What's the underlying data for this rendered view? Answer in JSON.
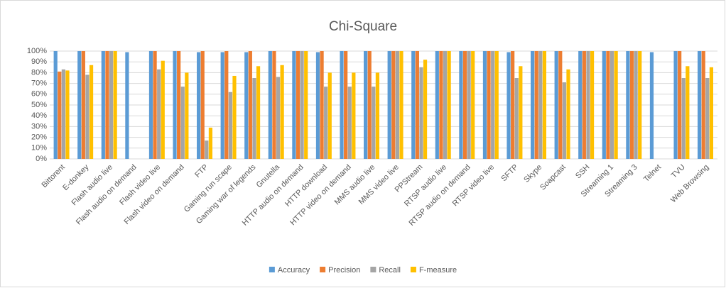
{
  "chart_data": {
    "type": "bar",
    "title": "Chi-Square",
    "categories": [
      "Bittorent",
      "E-donkey",
      "Flash audio live",
      "Flash audio on demand",
      "Flash video live",
      "Flash video on demand",
      "FTP",
      "Gaming run scape",
      "Gaming war of legends",
      "Gnutella",
      "HTTP audio on demand",
      "HTTP download",
      "HTTP video on demand",
      "MMS audio live",
      "MMS video live",
      "PPStream",
      "RTSP audio live",
      "RTSP audio on demand",
      "RTSP video live",
      "SFTP",
      "Skype",
      "Soapcast",
      "SSH",
      "Streaming 1",
      "Streaming 3",
      "Telnet",
      "TVU",
      "Web Browsing"
    ],
    "series": [
      {
        "name": "Accuracy",
        "color": "#5b9bd5",
        "values": [
          100,
          100,
          100,
          99,
          100,
          100,
          99,
          99,
          99,
          100,
          100,
          99,
          100,
          100,
          100,
          100,
          100,
          100,
          100,
          99,
          100,
          100,
          100,
          100,
          100,
          99,
          100,
          100
        ]
      },
      {
        "name": "Precision",
        "color": "#ed7d31",
        "values": [
          81,
          100,
          100,
          0,
          100,
          100,
          100,
          100,
          100,
          100,
          100,
          100,
          100,
          100,
          100,
          100,
          100,
          100,
          100,
          100,
          100,
          100,
          100,
          100,
          100,
          0,
          100,
          100
        ]
      },
      {
        "name": "Recall",
        "color": "#a5a5a5",
        "values": [
          83,
          78,
          100,
          0,
          83,
          67,
          17,
          62,
          75,
          76,
          100,
          67,
          67,
          67,
          100,
          85,
          100,
          100,
          100,
          75,
          100,
          71,
          100,
          100,
          100,
          0,
          75,
          75
        ]
      },
      {
        "name": "F-measure",
        "color": "#ffc000",
        "values": [
          82,
          87,
          100,
          0,
          91,
          80,
          29,
          77,
          86,
          87,
          100,
          80,
          80,
          80,
          100,
          92,
          100,
          100,
          100,
          86,
          100,
          83,
          100,
          100,
          100,
          0,
          86,
          85
        ]
      }
    ],
    "ylim": [
      0,
      100
    ],
    "yticks": [
      {
        "value": 0,
        "label": "0%"
      },
      {
        "value": 10,
        "label": "10%"
      },
      {
        "value": 20,
        "label": "20%"
      },
      {
        "value": 30,
        "label": "30%"
      },
      {
        "value": 40,
        "label": "40%"
      },
      {
        "value": 50,
        "label": "50%"
      },
      {
        "value": 60,
        "label": "60%"
      },
      {
        "value": 70,
        "label": "70%"
      },
      {
        "value": 80,
        "label": "80%"
      },
      {
        "value": 90,
        "label": "90%"
      },
      {
        "value": 100,
        "label": "100%"
      }
    ],
    "grid": true,
    "legend": "bottom"
  }
}
